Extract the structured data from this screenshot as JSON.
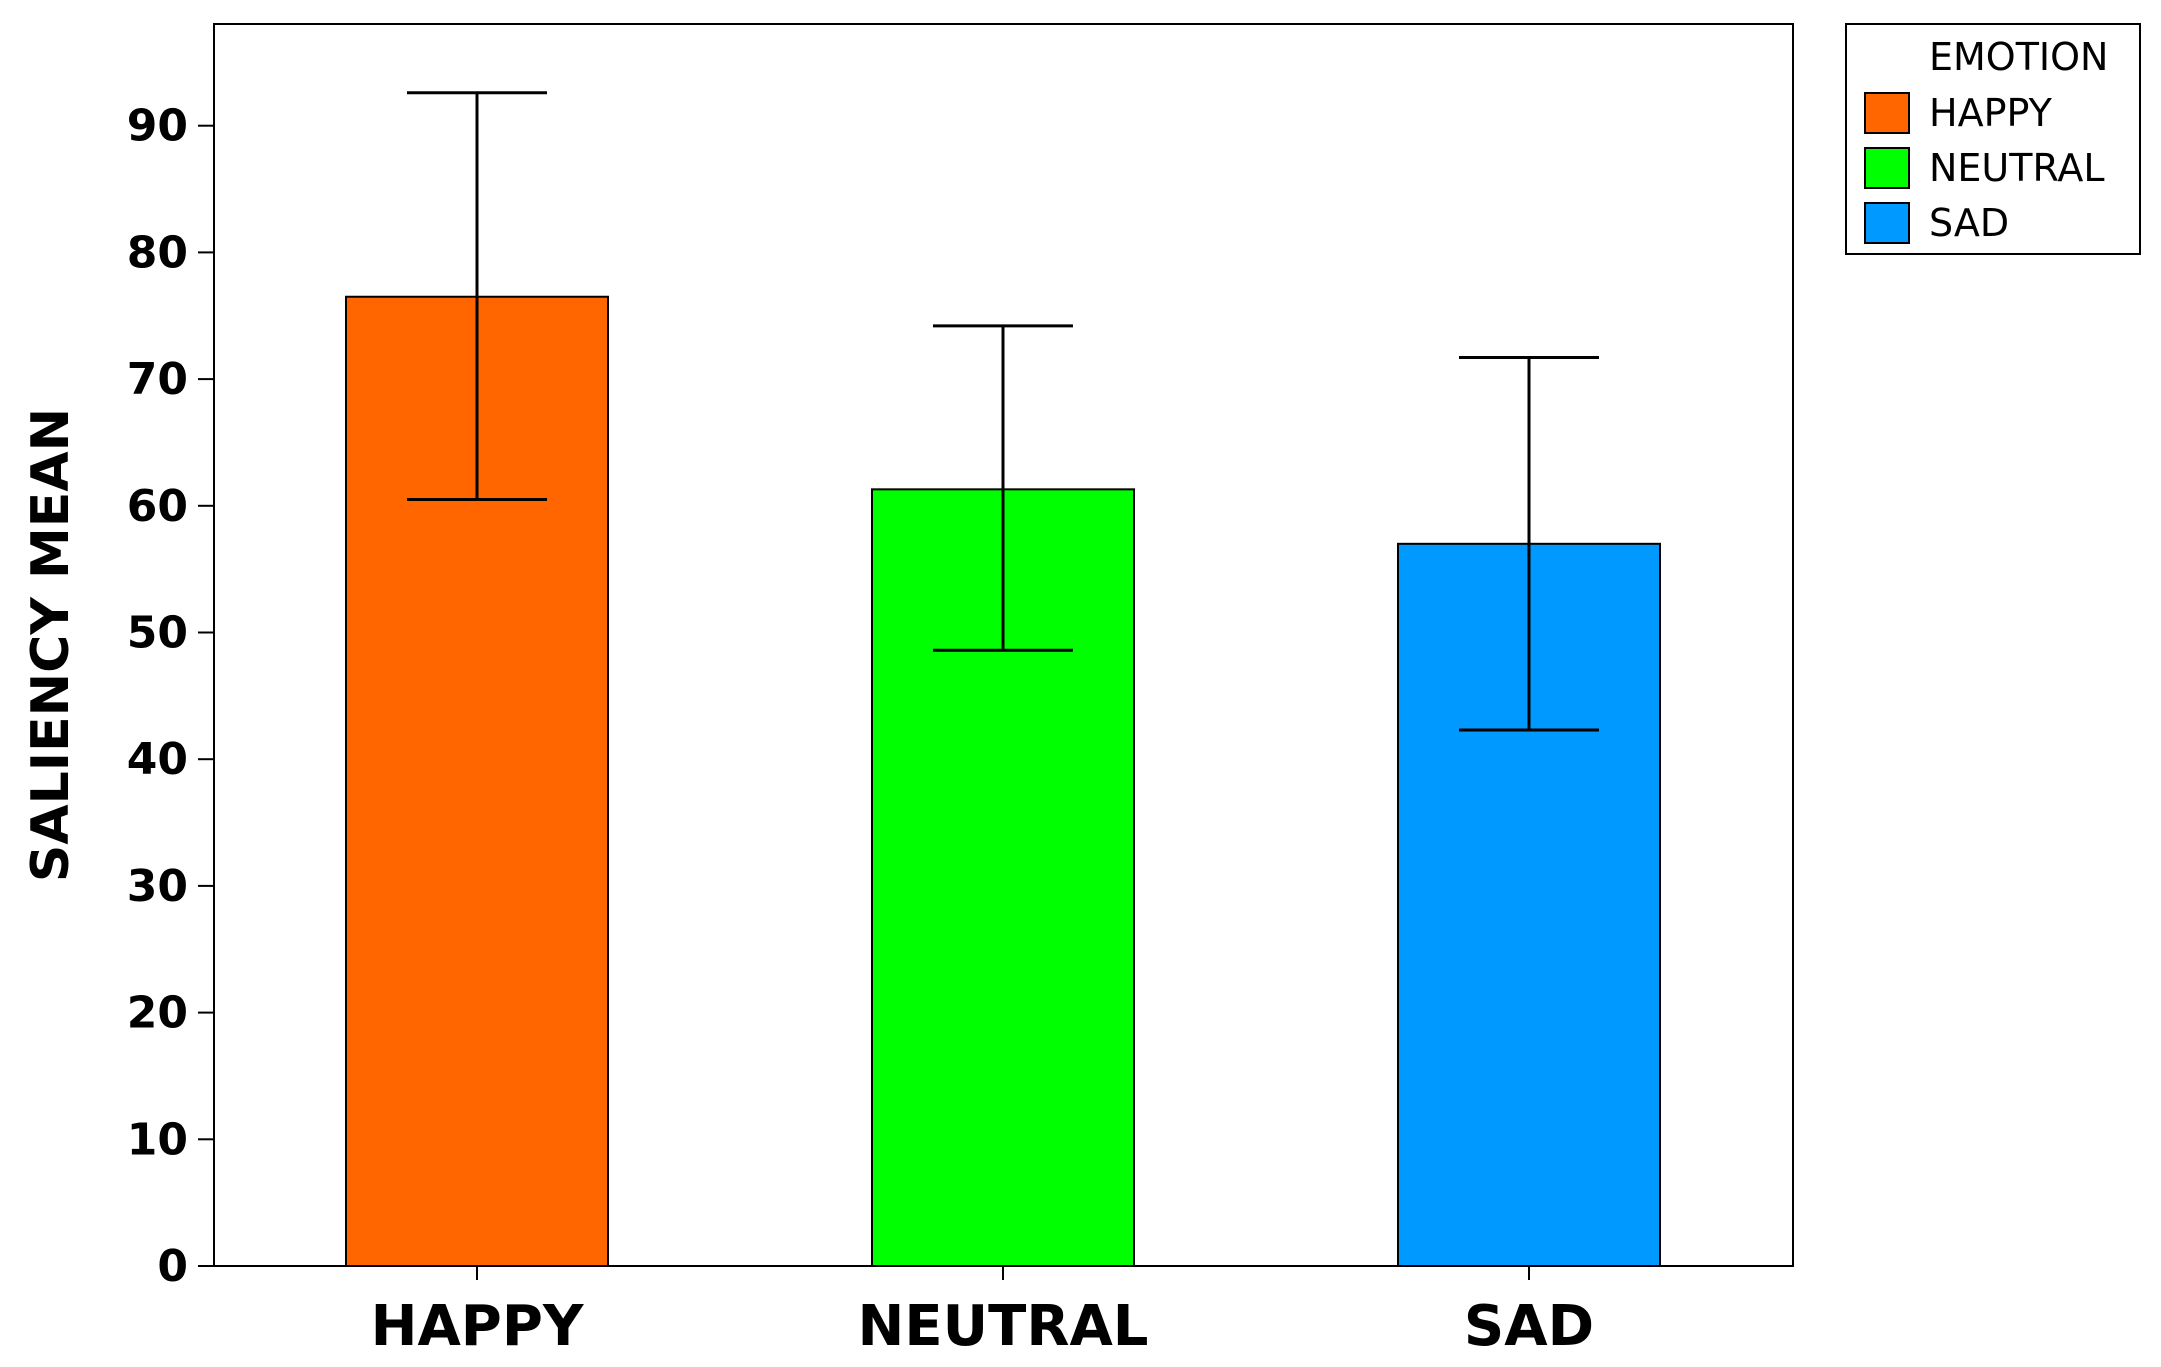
{
  "chart_data": {
    "type": "bar",
    "title": "",
    "xlabel": "",
    "ylabel": "SALIENCY MEAN",
    "ylim": [
      0,
      98
    ],
    "yticks": [
      0,
      10,
      20,
      30,
      40,
      50,
      60,
      70,
      80,
      90
    ],
    "categories": [
      "HAPPY",
      "NEUTRAL",
      "SAD"
    ],
    "values": [
      76.5,
      61.3,
      57.0
    ],
    "error_bars": [
      {
        "low": 60.5,
        "high": 92.6
      },
      {
        "low": 48.6,
        "high": 74.2
      },
      {
        "low": 42.3,
        "high": 71.7
      }
    ],
    "colors": [
      "#FF6600",
      "#00FF00",
      "#0099FF"
    ],
    "legend": {
      "title": "EMOTION",
      "placement": "top-right-outside",
      "entries": [
        {
          "label": "HAPPY",
          "color": "#FF6600"
        },
        {
          "label": "NEUTRAL",
          "color": "#00FF00"
        },
        {
          "label": "SAD",
          "color": "#0099FF"
        }
      ]
    },
    "grid": false
  }
}
